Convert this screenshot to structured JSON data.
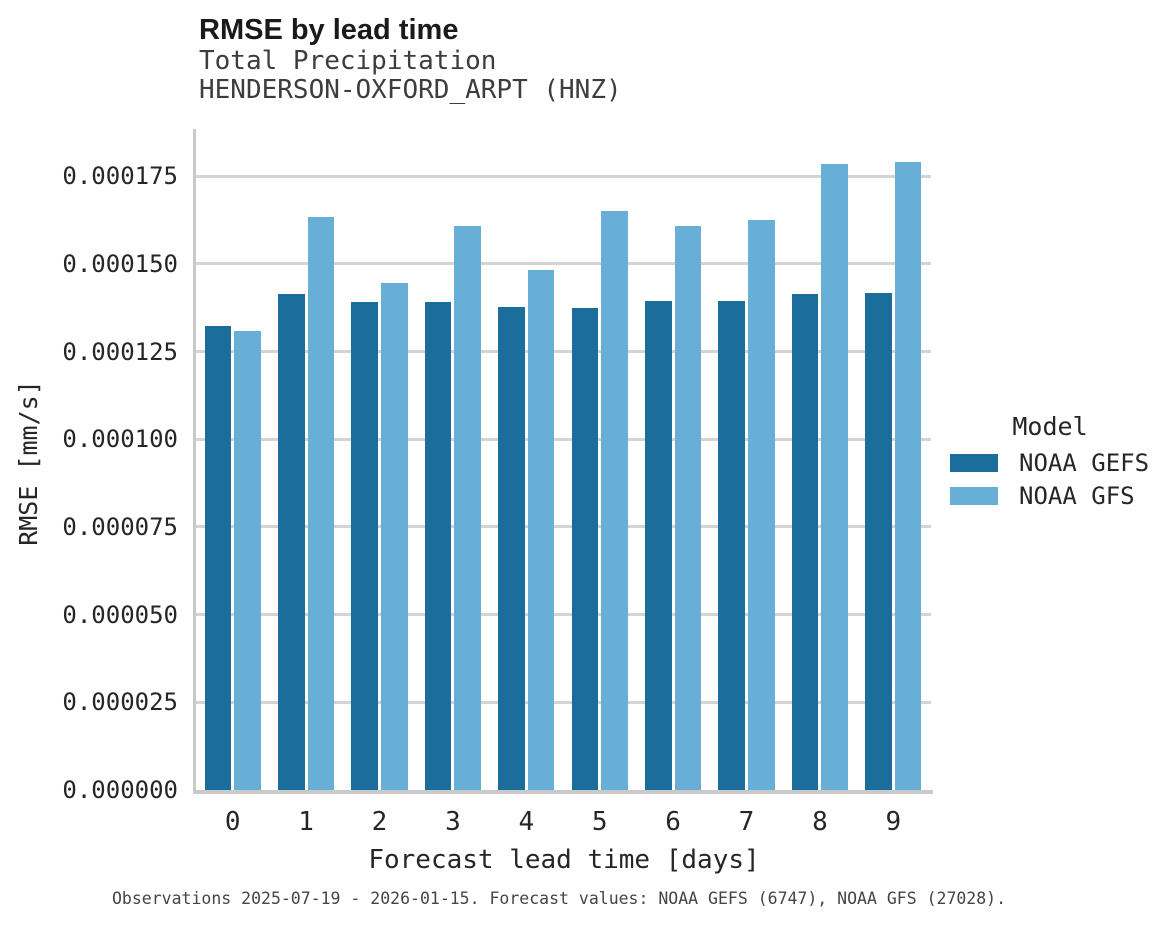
{
  "header": {
    "title": "RMSE by lead time",
    "subtitle_line1": "Total Precipitation",
    "subtitle_line2": "HENDERSON-OXFORD_ARPT (HNZ)"
  },
  "axes": {
    "x_title": "Forecast lead time [days]",
    "y_title": "RMSE [mm/s]",
    "x_ticks": [
      "0",
      "1",
      "2",
      "3",
      "4",
      "5",
      "6",
      "7",
      "8",
      "9"
    ],
    "y_ticks": [
      "0.000000",
      "0.000025",
      "0.000050",
      "0.000075",
      "0.000100",
      "0.000125",
      "0.000150",
      "0.000175"
    ]
  },
  "legend": {
    "title": "Model",
    "items": [
      {
        "label": "NOAA GEFS",
        "color": "#1b6d9c"
      },
      {
        "label": "NOAA GFS",
        "color": "#68afd8"
      }
    ]
  },
  "caption": {
    "text": "Observations 2025-07-19 - 2026-01-15. Forecast values: NOAA GEFS (6747), NOAA GFS (27028)."
  },
  "colors": {
    "gefs": "#1b6d9c",
    "gfs": "#68afd8",
    "gridline": "#d4d4d4",
    "axis": "#c9c9c9"
  },
  "chart_data": {
    "type": "bar",
    "title": "RMSE by lead time",
    "subtitle": [
      "Total Precipitation",
      "HENDERSON-OXFORD_ARPT (HNZ)"
    ],
    "xlabel": "Forecast lead time [days]",
    "ylabel": "RMSE [mm/s]",
    "categories": [
      0,
      1,
      2,
      3,
      4,
      5,
      6,
      7,
      8,
      9
    ],
    "series": [
      {
        "name": "NOAA GEFS",
        "color": "#1b6d9c",
        "values": [
          0.0001322,
          0.0001415,
          0.0001391,
          0.0001391,
          0.0001377,
          0.0001375,
          0.0001393,
          0.0001394,
          0.0001413,
          0.0001417
        ]
      },
      {
        "name": "NOAA GFS",
        "color": "#68afd8",
        "values": [
          0.0001308,
          0.0001633,
          0.0001444,
          0.0001608,
          0.0001483,
          0.000165,
          0.0001607,
          0.0001626,
          0.0001784,
          0.0001791
        ]
      }
    ],
    "ylim": [
      0,
      0.000188
    ],
    "ytick_step": 2.5e-05,
    "grid": true,
    "legend_title": "Model",
    "legend_position": "right",
    "legend_entries": [
      "NOAA GEFS",
      "NOAA GFS"
    ]
  }
}
